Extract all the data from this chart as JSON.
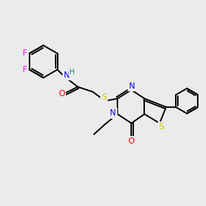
{
  "bg": "#ebebeb",
  "atom_colors": {
    "C": "#000000",
    "N": "#0000ff",
    "O": "#ff0000",
    "S": "#cccc00",
    "F": "#ff00ff",
    "H": "#008080"
  },
  "bond_color": "#000000",
  "bond_width": 1.5,
  "font_size": 8.5
}
